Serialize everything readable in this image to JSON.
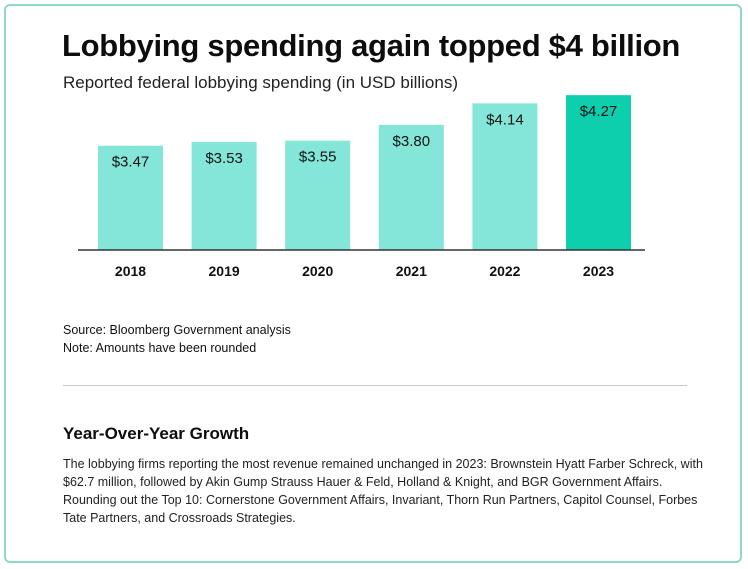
{
  "header": {
    "title": "Lobbying spending again topped $4 billion",
    "subtitle": "Reported federal lobbying spending (in USD billions)"
  },
  "chart_data": {
    "type": "bar",
    "title": "Lobbying spending again topped $4 billion",
    "subtitle": "Reported federal lobbying spending (in USD billions)",
    "categories": [
      "2018",
      "2019",
      "2020",
      "2021",
      "2022",
      "2023"
    ],
    "values": [
      3.47,
      3.53,
      3.55,
      3.8,
      4.14,
      4.27
    ],
    "value_labels": [
      "$3.47",
      "$3.53",
      "$3.55",
      "$3.80",
      "$4.14",
      "$4.27"
    ],
    "xlabel": "",
    "ylabel": "",
    "grid": false,
    "colors": {
      "bar": "#83e6d8",
      "highlight": "#0dcfae",
      "highlight_index": 5,
      "axis": "#333333"
    }
  },
  "notes": {
    "source": "Source: Bloomberg Government analysis",
    "note": "Note: Amounts have been rounded"
  },
  "section": {
    "title": "Year-Over-Year Growth",
    "body": "The lobbying firms reporting the most revenue remained unchanged in 2023: Brownstein Hyatt Farber Schreck, with $62.7 million, followed by Akin Gump Strauss Hauer & Feld, Holland & Knight, and BGR Government Affairs. Rounding out the Top 10: Cornerstone Government Affairs, Invariant, Thorn Run Partners, Capitol Counsel, Forbes Tate Partners, and Crossroads Strategies."
  }
}
